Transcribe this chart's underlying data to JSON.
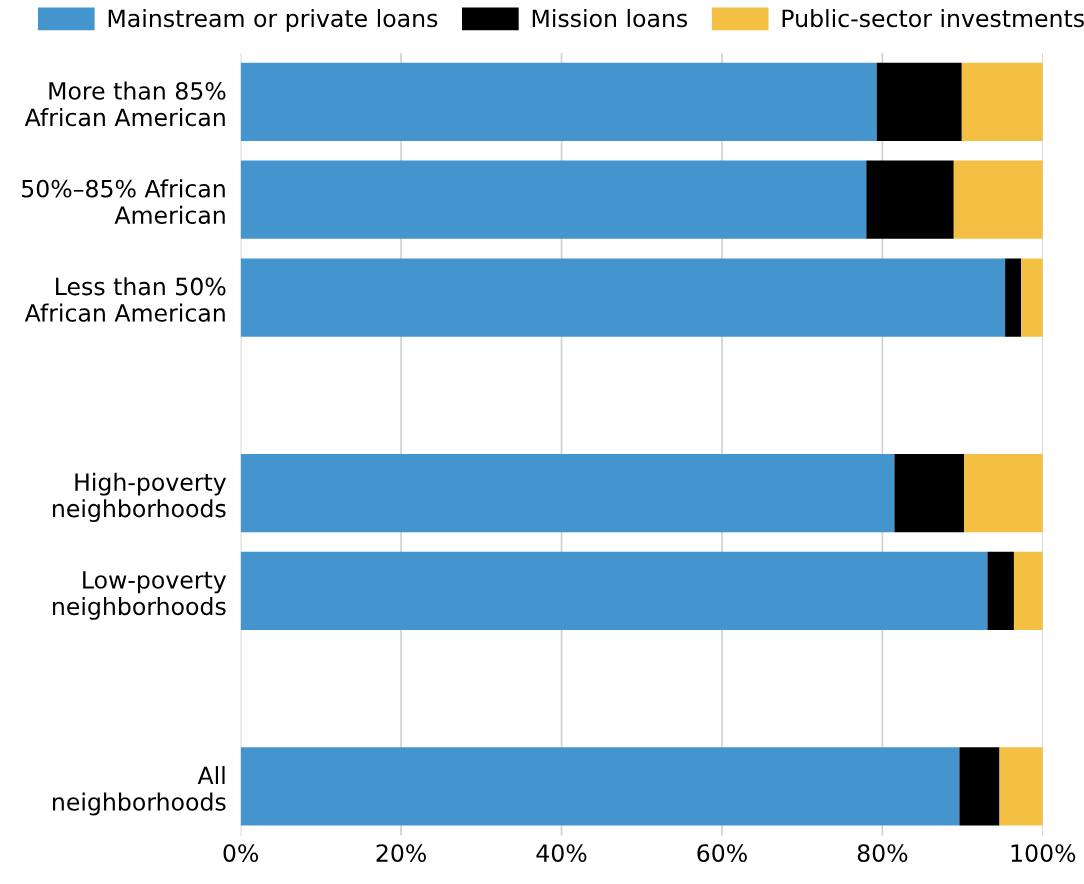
{
  "chart_data": {
    "type": "bar",
    "orientation": "horizontal",
    "stacked": true,
    "categories": [
      "More than 85%\nAfrican American",
      "50%–85% African\nAmerican",
      "Less than 50%\nAfrican American",
      null,
      "High-poverty\nneighborhoods",
      "Low-poverty\nneighborhoods",
      null,
      "All\nneighborhoods"
    ],
    "series": [
      {
        "name": "Mainstream or private loans",
        "color": "#4495cd",
        "values": [
          79.3,
          78.0,
          95.3,
          null,
          81.5,
          93.1,
          null,
          89.6
        ]
      },
      {
        "name": "Mission loans",
        "color": "#000000",
        "values": [
          10.6,
          10.9,
          2.0,
          null,
          8.7,
          3.3,
          null,
          5.0
        ]
      },
      {
        "name": "Public-sector investments",
        "color": "#f3c043",
        "values": [
          10.1,
          11.1,
          2.7,
          null,
          9.8,
          3.6,
          null,
          5.4
        ]
      }
    ],
    "xlim": [
      0,
      100
    ],
    "xticks": [
      {
        "value": 0,
        "label": "0%"
      },
      {
        "value": 20,
        "label": "20%"
      },
      {
        "value": 40,
        "label": "40%"
      },
      {
        "value": 60,
        "label": "60%"
      },
      {
        "value": 80,
        "label": "80%"
      },
      {
        "value": 100,
        "label": "100%"
      }
    ],
    "grid": "x",
    "legend": "top"
  }
}
